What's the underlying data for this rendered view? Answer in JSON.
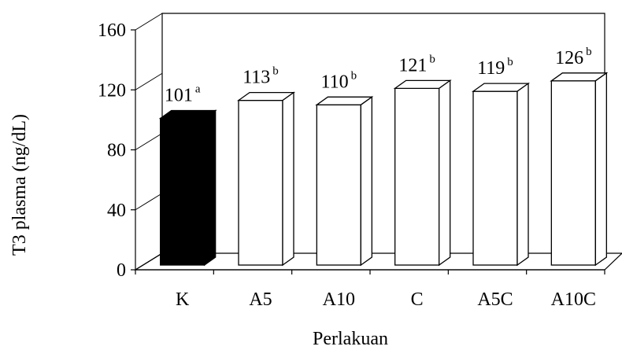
{
  "chart_data": {
    "type": "bar",
    "style": "3d-column",
    "title": "",
    "xlabel": "Perlakuan",
    "ylabel": "T3 plasma (ng/dL)",
    "ylim": [
      0,
      160
    ],
    "yticks": [
      "0",
      "40",
      "80",
      "120",
      "160"
    ],
    "categories": [
      "K",
      "A5",
      "A10",
      "C",
      "A5C",
      "A10C"
    ],
    "values": [
      101,
      113,
      110,
      121,
      119,
      126
    ],
    "value_labels": [
      "101",
      "113",
      "110",
      "121",
      "119",
      "126"
    ],
    "significance": [
      "a",
      "b",
      "b",
      "b",
      "b",
      "b"
    ],
    "bar_fills": [
      "#000000",
      "#ffffff",
      "#ffffff",
      "#ffffff",
      "#ffffff",
      "#ffffff"
    ],
    "grid": false,
    "legend": "none"
  }
}
